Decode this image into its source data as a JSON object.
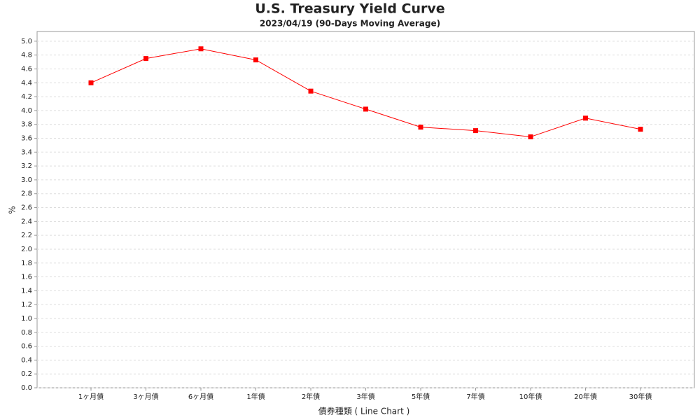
{
  "chart_data": {
    "type": "line",
    "title": "U.S. Treasury Yield Curve",
    "subtitle": "2023/04/19 (90-Days Moving Average)",
    "x_label": "債券種類 ( Line Chart )",
    "y_label": "%",
    "categories": [
      "1ヶ月債",
      "3ヶ月債",
      "6ヶ月債",
      "1年債",
      "2年債",
      "3年債",
      "5年債",
      "7年債",
      "10年債",
      "20年債",
      "30年債"
    ],
    "series": [
      {
        "color": "#ff0000",
        "values": [
          4.4,
          4.75,
          4.89,
          4.73,
          4.28,
          4.02,
          3.76,
          3.71,
          3.62,
          3.89,
          3.73
        ]
      }
    ],
    "ylim": [
      0,
      5.14
    ],
    "yticks": [
      {
        "value": 0,
        "label": "0.0"
      },
      0.2,
      0.4,
      0.6,
      0.8,
      {
        "value": 1,
        "label": "1.0"
      },
      1.2,
      1.4,
      1.6,
      1.8,
      {
        "value": 2,
        "label": "2.0"
      },
      2.2,
      2.4,
      2.6,
      2.8,
      {
        "value": 3,
        "label": "3.0"
      },
      3.2,
      3.4,
      3.6,
      3.8,
      {
        "value": 4,
        "label": "4.0"
      },
      4.2,
      4.4,
      4.6,
      4.8,
      {
        "value": 5,
        "label": "5.0"
      }
    ],
    "grid": true
  }
}
